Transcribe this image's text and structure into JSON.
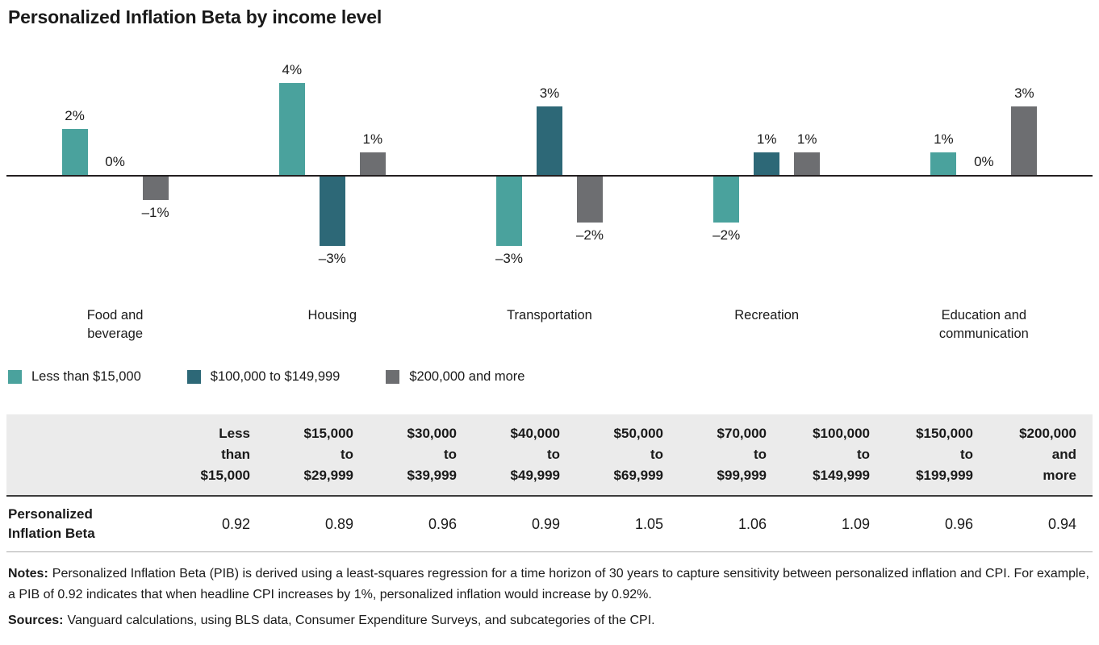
{
  "title": "Personalized Inflation Beta by income level",
  "colors": {
    "series_teal": "#4AA29D",
    "series_dark_teal": "#2D6877",
    "series_gray": "#6D6E71",
    "axis": "#231F20",
    "table_header_bg": "#EBEBEB",
    "text": "#1A1A1A"
  },
  "chart_data": {
    "type": "bar",
    "title": "Personalized Inflation Beta by income level",
    "categories": [
      "Food and beverage",
      "Housing",
      "Transportation",
      "Recreation",
      "Education and communication"
    ],
    "categories_display": [
      "Food and\nbeverage",
      "Housing",
      "Transportation",
      "Recreation",
      "Education and\ncommunication"
    ],
    "series": [
      {
        "name": "Less than $15,000",
        "color": "#4AA29D",
        "values": [
          2,
          4,
          -3,
          -2,
          1
        ]
      },
      {
        "name": "$100,000 to $149,999",
        "color": "#2D6877",
        "values": [
          0,
          -3,
          3,
          1,
          0
        ]
      },
      {
        "name": "$200,000 and more",
        "color": "#6D6E71",
        "values": [
          -1,
          1,
          -2,
          1,
          3
        ]
      }
    ],
    "value_suffix": "%",
    "ylim": [
      -3,
      4
    ],
    "data_labels": true,
    "grid": false,
    "legend_position": "bottom"
  },
  "table": {
    "row_label": "Personalized\nInflation Beta",
    "columns": [
      [
        "Less",
        "than",
        "$15,000"
      ],
      [
        "$15,000",
        "to",
        "$29,999"
      ],
      [
        "$30,000",
        "to",
        "$39,999"
      ],
      [
        "$40,000",
        "to",
        "$49,999"
      ],
      [
        "$50,000",
        "to",
        "$69,999"
      ],
      [
        "$70,000",
        "to",
        "$99,999"
      ],
      [
        "$100,000",
        "to",
        "$149,999"
      ],
      [
        "$150,000",
        "to",
        "$199,999"
      ],
      [
        "$200,000",
        "and",
        "more"
      ]
    ],
    "values": [
      "0.92",
      "0.89",
      "0.96",
      "0.99",
      "1.05",
      "1.06",
      "1.09",
      "0.96",
      "0.94"
    ]
  },
  "notes": {
    "label": "Notes:",
    "text": "Personalized Inflation Beta (PIB) is derived using a least-squares regression for a time horizon of 30 years to capture sensitivity between personalized inflation and CPI. For example, a PIB of 0.92 indicates that when headline CPI increases by 1%, personalized inflation would increase by 0.92%."
  },
  "sources": {
    "label": "Sources:",
    "text": "Vanguard calculations, using BLS data, Consumer Expenditure Surveys, and subcategories of the CPI."
  }
}
